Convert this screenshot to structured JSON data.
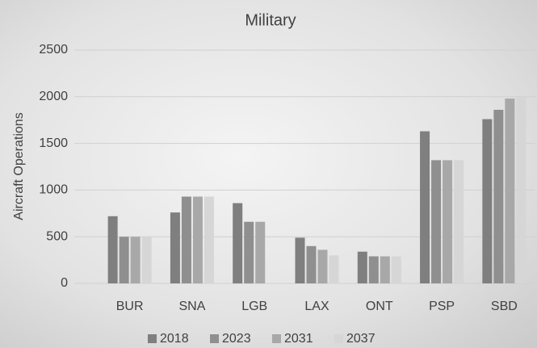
{
  "chart_data": {
    "type": "bar",
    "title": "Military",
    "y_label": "Aircraft Operations",
    "categories": [
      "BUR",
      "SNA",
      "LGB",
      "LAX",
      "ONT",
      "PSP",
      "SBD"
    ],
    "series": [
      {
        "name": "2018",
        "color": "#7f7f7f",
        "values": [
          720,
          760,
          860,
          490,
          340,
          1630,
          1760
        ]
      },
      {
        "name": "2023",
        "color": "#8f8f8f",
        "values": [
          500,
          930,
          660,
          400,
          290,
          1320,
          1860
        ]
      },
      {
        "name": "2031",
        "color": "#a8a8a8",
        "values": [
          500,
          930,
          660,
          360,
          290,
          1320,
          1980
        ]
      },
      {
        "name": "2037",
        "color": "#d6d6d6",
        "values": [
          500,
          930,
          0,
          300,
          290,
          1320,
          2000
        ]
      }
    ],
    "ylim": [
      0,
      2500
    ],
    "yticks": [
      0,
      500,
      1000,
      1500,
      2000,
      2500
    ],
    "grid": true,
    "legend": "bottom"
  }
}
